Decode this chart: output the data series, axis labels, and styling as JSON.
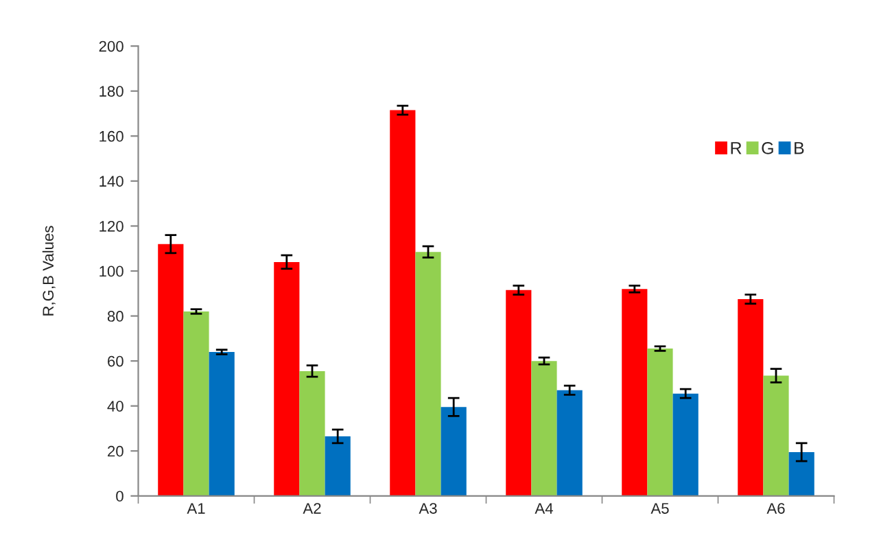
{
  "chart_data": {
    "type": "bar",
    "ylabel": "R,G,B Values",
    "categories": [
      "A1",
      "A2",
      "A3",
      "A4",
      "A5",
      "A6"
    ],
    "series": [
      {
        "name": "R",
        "color": "#ff0000",
        "values": [
          112,
          104,
          171.5,
          91.5,
          92,
          87.5
        ],
        "errors": [
          4,
          3,
          2,
          2,
          1.5,
          2
        ]
      },
      {
        "name": "G",
        "color": "#92d050",
        "values": [
          82,
          55.5,
          108.5,
          60,
          65.5,
          53.5
        ],
        "errors": [
          1,
          2.5,
          2.5,
          1.5,
          1,
          3
        ]
      },
      {
        "name": "B",
        "color": "#0070c0",
        "values": [
          64,
          26.5,
          39.5,
          47,
          45.5,
          19.5
        ],
        "errors": [
          1,
          3,
          4,
          2,
          2,
          4
        ]
      }
    ],
    "ylim": [
      0,
      200
    ],
    "yticks": [
      0,
      20,
      40,
      60,
      80,
      100,
      120,
      140,
      160,
      180,
      200
    ],
    "grid": false,
    "legend": "top right"
  }
}
